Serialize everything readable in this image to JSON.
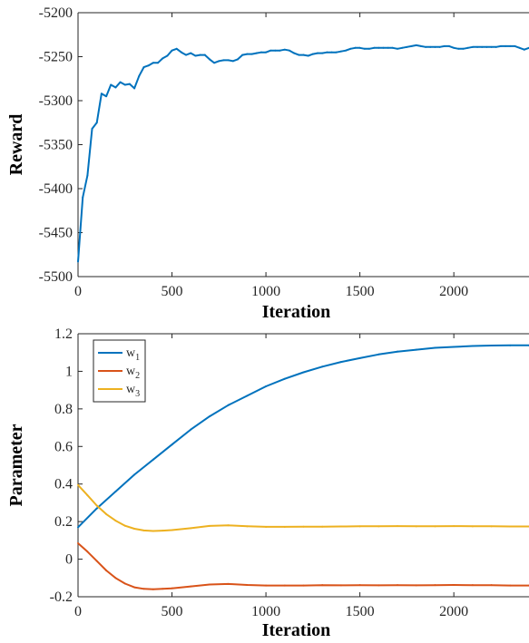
{
  "chart_data": [
    {
      "type": "line",
      "xlabel": "Iteration",
      "ylabel": "Reward",
      "xlim": [
        0,
        2400
      ],
      "ylim": [
        -5500,
        -5200
      ],
      "xticks": [
        0,
        500,
        1000,
        1500,
        2000
      ],
      "yticks": [
        -5500,
        -5450,
        -5400,
        -5350,
        -5300,
        -5250,
        -5200
      ],
      "grid": false,
      "series": [
        {
          "color": "#0072BD",
          "x": [
            0,
            25,
            50,
            75,
            100,
            125,
            150,
            175,
            200,
            225,
            250,
            275,
            300,
            325,
            350,
            375,
            400,
            425,
            450,
            475,
            500,
            525,
            550,
            575,
            600,
            625,
            650,
            675,
            700,
            725,
            750,
            775,
            800,
            825,
            850,
            875,
            900,
            925,
            950,
            975,
            1000,
            1025,
            1050,
            1075,
            1100,
            1125,
            1150,
            1175,
            1200,
            1225,
            1250,
            1275,
            1300,
            1325,
            1350,
            1375,
            1400,
            1425,
            1450,
            1475,
            1500,
            1525,
            1550,
            1575,
            1600,
            1625,
            1650,
            1675,
            1700,
            1725,
            1750,
            1775,
            1800,
            1825,
            1850,
            1875,
            1900,
            1925,
            1950,
            1975,
            2000,
            2025,
            2050,
            2075,
            2100,
            2125,
            2150,
            2175,
            2200,
            2225,
            2250,
            2275,
            2300,
            2325,
            2350,
            2375,
            2400
          ],
          "values": [
            -5483,
            -5410,
            -5385,
            -5332,
            -5325,
            -5292,
            -5295,
            -5282,
            -5285,
            -5279,
            -5282,
            -5281,
            -5286,
            -5272,
            -5262,
            -5260,
            -5257,
            -5257,
            -5252,
            -5249,
            -5243,
            -5241,
            -5245,
            -5248,
            -5246,
            -5249,
            -5248,
            -5248,
            -5253,
            -5257,
            -5255,
            -5254,
            -5254,
            -5255,
            -5253,
            -5248,
            -5247,
            -5247,
            -5246,
            -5245,
            -5245,
            -5243,
            -5243,
            -5243,
            -5242,
            -5243,
            -5246,
            -5248,
            -5248,
            -5249,
            -5247,
            -5246,
            -5246,
            -5245,
            -5245,
            -5245,
            -5244,
            -5243,
            -5241,
            -5240,
            -5240,
            -5241,
            -5241,
            -5240,
            -5240,
            -5240,
            -5240,
            -5240,
            -5241,
            -5240,
            -5239,
            -5238,
            -5237,
            -5238,
            -5239,
            -5239,
            -5239,
            -5239,
            -5238,
            -5238,
            -5240,
            -5241,
            -5241,
            -5240,
            -5239,
            -5239,
            -5239,
            -5239,
            -5239,
            -5239,
            -5238,
            -5238,
            -5238,
            -5238,
            -5240,
            -5242,
            -5240
          ]
        }
      ]
    },
    {
      "type": "line",
      "xlabel": "Iteration",
      "ylabel": "Parameter",
      "xlim": [
        0,
        2400
      ],
      "ylim": [
        -0.2,
        1.2
      ],
      "xticks": [
        0,
        500,
        1000,
        1500,
        2000
      ],
      "yticks": [
        -0.2,
        0,
        0.2,
        0.4,
        0.6,
        0.8,
        1,
        1.2
      ],
      "grid": false,
      "legend_position": "top-left",
      "series": [
        {
          "name": "w",
          "subscript": "1",
          "color": "#0072BD",
          "x": [
            0,
            100,
            200,
            300,
            400,
            500,
            600,
            700,
            800,
            900,
            1000,
            1100,
            1200,
            1300,
            1400,
            1500,
            1600,
            1700,
            1800,
            1900,
            2000,
            2100,
            2200,
            2300,
            2400
          ],
          "values": [
            0.17,
            0.27,
            0.36,
            0.45,
            0.53,
            0.61,
            0.69,
            0.76,
            0.82,
            0.87,
            0.92,
            0.96,
            0.995,
            1.025,
            1.05,
            1.07,
            1.09,
            1.105,
            1.115,
            1.125,
            1.13,
            1.135,
            1.137,
            1.138,
            1.138
          ]
        },
        {
          "name": "w",
          "subscript": "2",
          "color": "#D95319",
          "x": [
            0,
            50,
            100,
            150,
            200,
            250,
            300,
            350,
            400,
            450,
            500,
            600,
            700,
            800,
            900,
            1000,
            1100,
            1200,
            1300,
            1400,
            1500,
            1600,
            1700,
            1800,
            1900,
            2000,
            2100,
            2200,
            2300,
            2400
          ],
          "values": [
            0.085,
            0.04,
            -0.01,
            -0.06,
            -0.1,
            -0.13,
            -0.15,
            -0.158,
            -0.16,
            -0.158,
            -0.155,
            -0.145,
            -0.135,
            -0.132,
            -0.137,
            -0.14,
            -0.14,
            -0.14,
            -0.138,
            -0.139,
            -0.138,
            -0.139,
            -0.138,
            -0.139,
            -0.138,
            -0.137,
            -0.138,
            -0.138,
            -0.14,
            -0.14
          ]
        },
        {
          "name": "w",
          "subscript": "3",
          "color": "#EDB120",
          "x": [
            0,
            50,
            100,
            150,
            200,
            250,
            300,
            350,
            400,
            450,
            500,
            600,
            700,
            800,
            900,
            1000,
            1100,
            1200,
            1300,
            1400,
            1500,
            1600,
            1700,
            1800,
            1900,
            2000,
            2100,
            2200,
            2300,
            2400
          ],
          "values": [
            0.395,
            0.34,
            0.285,
            0.24,
            0.205,
            0.178,
            0.162,
            0.153,
            0.15,
            0.152,
            0.155,
            0.165,
            0.177,
            0.18,
            0.175,
            0.172,
            0.172,
            0.173,
            0.173,
            0.174,
            0.175,
            0.175,
            0.176,
            0.175,
            0.175,
            0.176,
            0.175,
            0.175,
            0.174,
            0.174
          ]
        }
      ]
    }
  ]
}
